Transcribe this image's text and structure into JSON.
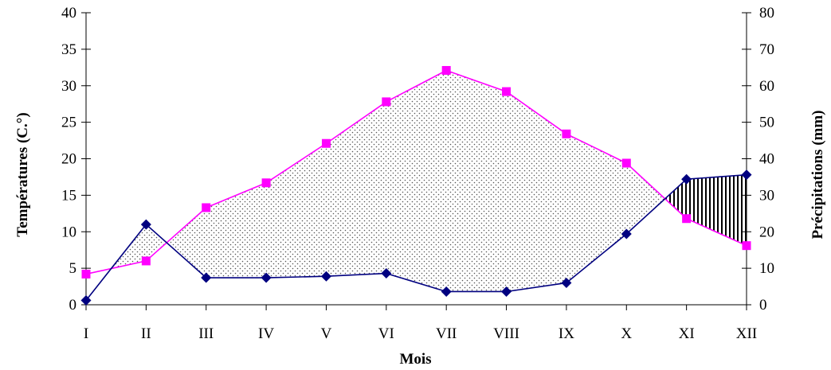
{
  "chart_data": {
    "type": "line",
    "categories": [
      "I",
      "II",
      "III",
      "IV",
      "V",
      "VI",
      "VII",
      "VIII",
      "IX",
      "X",
      "XI",
      "XII"
    ],
    "xlabel": "Mois",
    "ylabel_left": "Températures (C.°)",
    "ylabel_right": "Précipitations (mm)",
    "ylim_left": [
      0,
      40
    ],
    "ylim_right": [
      0,
      80
    ],
    "yticks_left": [
      0,
      5,
      10,
      15,
      20,
      25,
      30,
      35,
      40
    ],
    "yticks_right": [
      0,
      10,
      20,
      30,
      40,
      50,
      60,
      70,
      80
    ],
    "grid": false,
    "series": [
      {
        "axis": "left",
        "color": "#ff00ff",
        "marker": "square",
        "values": [
          4.2,
          6.0,
          13.3,
          16.7,
          22.1,
          27.8,
          32.1,
          29.2,
          23.4,
          19.4,
          11.8,
          8.1
        ]
      },
      {
        "axis": "right",
        "color": "#000080",
        "marker": "diamond",
        "values": [
          1.2,
          22.0,
          7.4,
          7.4,
          7.8,
          8.6,
          3.6,
          3.6,
          6.0,
          19.4,
          34.4,
          35.6
        ]
      }
    ],
    "fills": [
      {
        "pattern": "dots",
        "between_months": [
          "II",
          "X"
        ],
        "meaning": "temperature above precipitation/2"
      },
      {
        "pattern": "vertical-lines",
        "between_months": [
          "X",
          "XII"
        ],
        "meaning": "precipitation/2 above temperature"
      }
    ]
  }
}
